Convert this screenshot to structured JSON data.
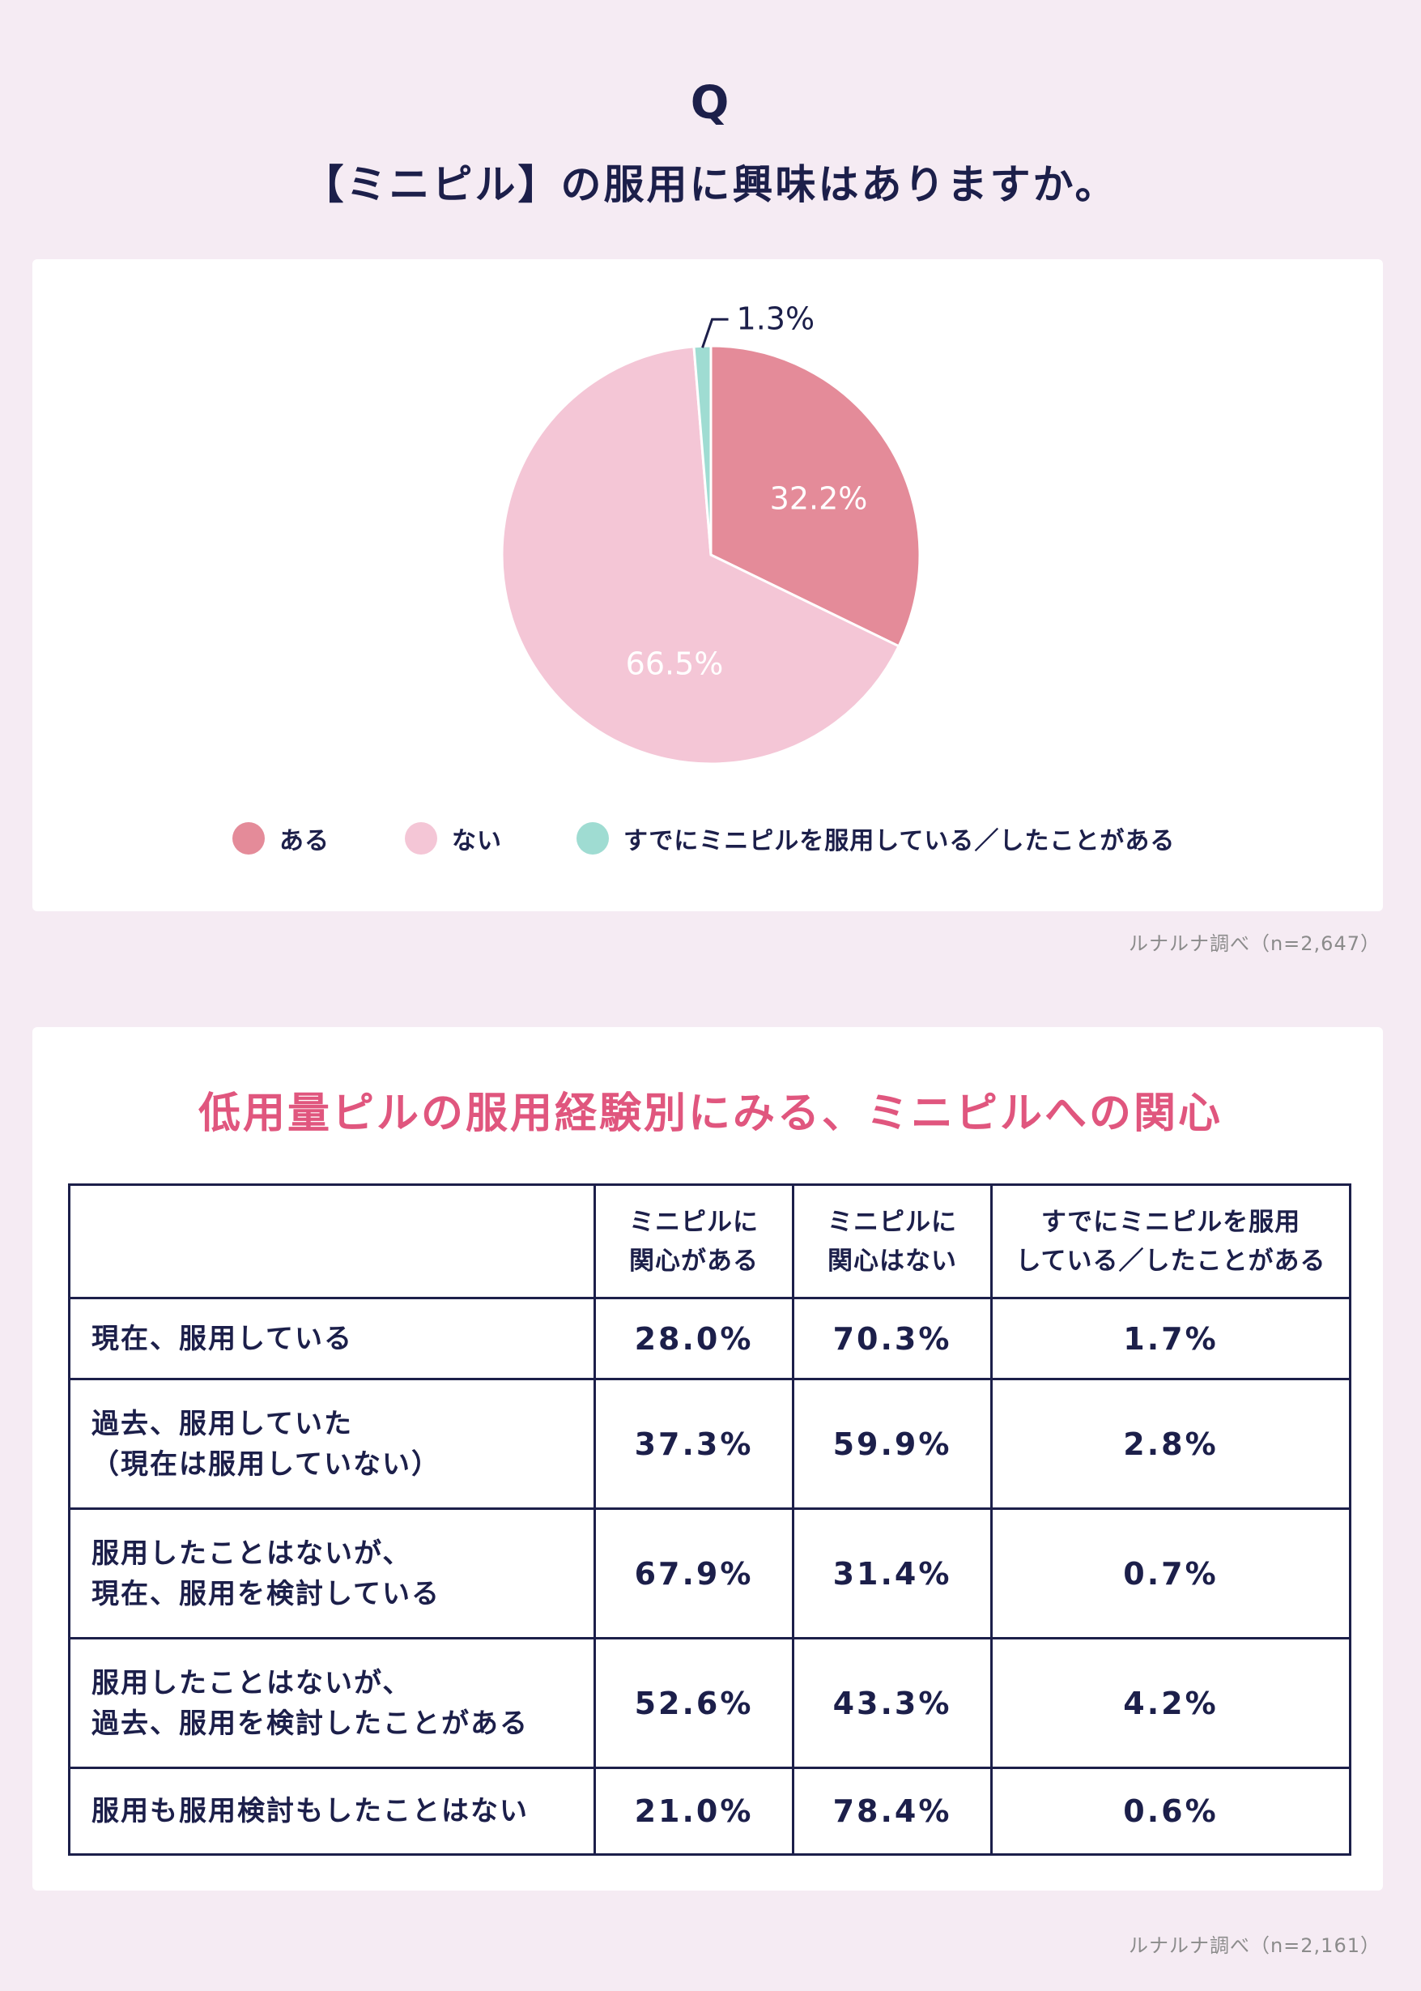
{
  "header": {
    "q_mark": "Q",
    "question": "【ミニピル】の服用に興味はありますか。"
  },
  "chart_data": {
    "type": "pie",
    "title": "【ミニピル】の服用に興味はありますか。",
    "categories": [
      "ある",
      "ない",
      "すでにミニピルを服用している／したことがある"
    ],
    "values": [
      32.2,
      66.5,
      1.3
    ],
    "value_labels": [
      "32.2%",
      "66.5%",
      "1.3%"
    ],
    "colors": [
      "#e48b99",
      "#f4c6d6",
      "#9fdcd2"
    ],
    "legend_position": "bottom"
  },
  "legend": [
    {
      "label": "ある",
      "color": "#e48b99"
    },
    {
      "label": "ない",
      "color": "#f4c6d6"
    },
    {
      "label": "すでにミニピルを服用している／したことがある",
      "color": "#9fdcd2"
    }
  ],
  "source_1": "ルナルナ調べ（n=2,647）",
  "table": {
    "title": "低用量ピルの服用経験別にみる、ミニピルへの関心",
    "headers": [
      {
        "line1": "",
        "line2": ""
      },
      {
        "line1": "ミニピルに",
        "line2": "関心がある"
      },
      {
        "line1": "ミニピルに",
        "line2": "関心はない"
      },
      {
        "line1": "すでにミニピルを服用",
        "line2": "している／したことがある"
      }
    ],
    "rows": [
      {
        "line1": "現在、服用している",
        "line2": "",
        "v1": "28.0%",
        "v2": "70.3%",
        "v3": "1.7%"
      },
      {
        "line1": "過去、服用していた",
        "line2": "（現在は服用していない）",
        "v1": "37.3%",
        "v2": "59.9%",
        "v3": "2.8%"
      },
      {
        "line1": "服用したことはないが、",
        "line2": "現在、服用を検討している",
        "v1": "67.9%",
        "v2": "31.4%",
        "v3": "0.7%"
      },
      {
        "line1": "服用したことはないが、",
        "line2": "過去、服用を検討したことがある",
        "v1": "52.6%",
        "v2": "43.3%",
        "v3": "4.2%"
      },
      {
        "line1": "服用も服用検討もしたことはない",
        "line2": "",
        "v1": "21.0%",
        "v2": "78.4%",
        "v3": "0.6%"
      }
    ]
  },
  "source_2": "ルナルナ調べ（n=2,161）"
}
